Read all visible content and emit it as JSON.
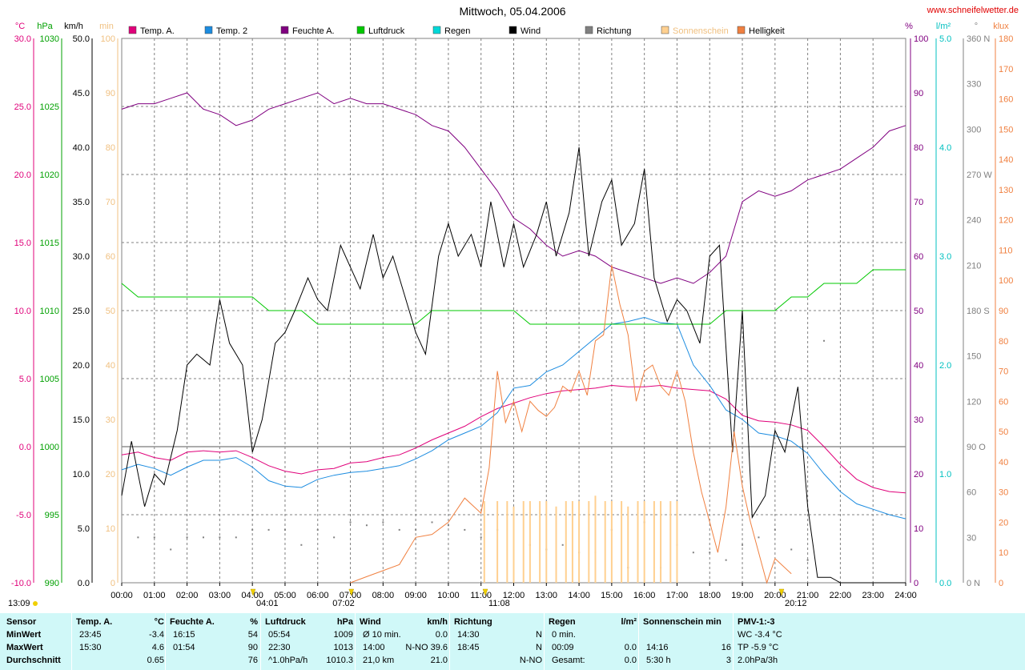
{
  "title": "Mittwoch, 05.04.2006",
  "website": "www.schneifelwetter.de",
  "axis_units": {
    "temp": "°C",
    "pressure": "hPa",
    "wind": "km/h",
    "sun": "min",
    "humidity": "%",
    "rain": "l/m²",
    "direction": "°",
    "brightness": "klux"
  },
  "legend": [
    {
      "label": "Temp. A.",
      "color": "#e0007a"
    },
    {
      "label": "Temp. 2",
      "color": "#1c8ce0"
    },
    {
      "label": "Feuchte A.",
      "color": "#800080"
    },
    {
      "label": "Luftdruck",
      "color": "#00c800"
    },
    {
      "label": "Regen",
      "color": "#00d8d8"
    },
    {
      "label": "Wind",
      "color": "#000000"
    },
    {
      "label": "Richtung",
      "color": "#808080"
    },
    {
      "label": "Sonnenschein",
      "color": "#ffd090"
    },
    {
      "label": "Helligkeit",
      "color": "#f08040"
    }
  ],
  "time_markers": [
    {
      "text": "13:09",
      "pos": "bottom-left"
    },
    {
      "text": "04:01",
      "hour": 4.02
    },
    {
      "text": "07:02",
      "hour": 7.03
    },
    {
      "text": "11:08",
      "hour": 11.13
    },
    {
      "text": "20:12",
      "hour": 20.2
    }
  ],
  "chart_data": {
    "type": "line",
    "title": "Mittwoch, 05.04.2006",
    "x_ticks": [
      "00:00",
      "01:00",
      "02:00",
      "03:00",
      "04:00",
      "05:00",
      "06:00",
      "07:00",
      "08:00",
      "09:00",
      "10:00",
      "11:00",
      "12:00",
      "13:00",
      "14:00",
      "15:00",
      "16:00",
      "17:00",
      "18:00",
      "19:00",
      "20:00",
      "21:00",
      "22:00",
      "23:00",
      "24:00"
    ],
    "xlim": [
      0,
      24
    ],
    "grid": true,
    "axes": {
      "temp": {
        "label": "°C",
        "ylim": [
          -10,
          30
        ],
        "ticks": [
          "30.0",
          "25.0",
          "20.0",
          "15.0",
          "10.0",
          "5.0",
          "0.0",
          "-5.0",
          "-10.0"
        ]
      },
      "pressure": {
        "label": "hPa",
        "ylim": [
          990,
          1030
        ],
        "ticks": [
          "1030",
          "1025",
          "1020",
          "1015",
          "1010",
          "1005",
          "1000",
          "995",
          "990"
        ]
      },
      "wind": {
        "label": "km/h",
        "ylim": [
          0,
          50
        ],
        "ticks": [
          "50.0",
          "45.0",
          "40.0",
          "35.0",
          "30.0",
          "25.0",
          "20.0",
          "15.0",
          "10.0",
          "5.0",
          "0.0"
        ]
      },
      "sun": {
        "label": "min",
        "ylim": [
          0,
          100
        ],
        "ticks": [
          "100",
          "90",
          "80",
          "70",
          "60",
          "50",
          "40",
          "30",
          "20",
          "10",
          "0"
        ]
      },
      "humidity": {
        "label": "%",
        "ylim": [
          0,
          100
        ],
        "ticks": [
          "100",
          "90",
          "80",
          "70",
          "60",
          "50",
          "40",
          "30",
          "20",
          "10",
          "0"
        ]
      },
      "rain": {
        "label": "l/m²",
        "ylim": [
          0,
          5
        ],
        "ticks": [
          "5.0",
          "4.0",
          "3.0",
          "2.0",
          "1.0",
          "0.0"
        ]
      },
      "direction": {
        "label": "°",
        "ylim": [
          0,
          360
        ],
        "ticks": [
          "360 N",
          "330",
          "300",
          "270 W",
          "240",
          "210",
          "180 S",
          "150",
          "120",
          "90 O",
          "60",
          "30",
          "0 N"
        ]
      },
      "brightness": {
        "label": "klux",
        "ylim": [
          0,
          180
        ],
        "ticks": [
          "180",
          "170",
          "160",
          "150",
          "140",
          "130",
          "120",
          "110",
          "100",
          "90",
          "80",
          "70",
          "60",
          "50",
          "40",
          "30",
          "20",
          "10",
          "0"
        ]
      }
    },
    "series": [
      {
        "name": "Temp. A.",
        "axis": "temp",
        "color": "#e0007a",
        "x": [
          0,
          0.5,
          1,
          1.5,
          2,
          2.5,
          3,
          3.5,
          4,
          4.5,
          5,
          5.5,
          6,
          6.5,
          7,
          7.5,
          8,
          8.5,
          9,
          9.5,
          10,
          10.5,
          11,
          11.5,
          12,
          12.5,
          13,
          13.5,
          14,
          14.5,
          15,
          15.5,
          16,
          16.5,
          17,
          17.5,
          18,
          18.5,
          19,
          19.5,
          20,
          20.5,
          21,
          21.5,
          22,
          22.5,
          23,
          23.5,
          24
        ],
        "values": [
          -0.6,
          -0.4,
          -0.8,
          -1.0,
          -0.4,
          -0.3,
          -0.4,
          -0.3,
          -0.8,
          -1.4,
          -1.8,
          -2.0,
          -1.7,
          -1.6,
          -1.2,
          -1.1,
          -0.8,
          -0.6,
          -0.1,
          0.5,
          1.0,
          1.5,
          2.2,
          2.8,
          3.2,
          3.6,
          3.9,
          4.1,
          4.2,
          4.3,
          4.5,
          4.4,
          4.4,
          4.5,
          4.3,
          4.2,
          4.1,
          3.5,
          2.3,
          1.9,
          1.8,
          1.6,
          1.2,
          0.0,
          -1.3,
          -2.4,
          -3.0,
          -3.3,
          -3.4
        ]
      },
      {
        "name": "Temp. 2",
        "axis": "temp",
        "color": "#1c8ce0",
        "x": [
          0,
          0.5,
          1,
          1.5,
          2,
          2.5,
          3,
          3.5,
          4,
          4.5,
          5,
          5.5,
          6,
          6.5,
          7,
          7.5,
          8,
          8.5,
          9,
          9.5,
          10,
          10.5,
          11,
          11.5,
          12,
          12.5,
          13,
          13.5,
          14,
          14.5,
          15,
          15.5,
          16,
          16.5,
          17,
          17.5,
          18,
          18.5,
          19,
          19.5,
          20,
          20.5,
          21,
          21.5,
          22,
          22.5,
          23,
          23.5,
          24
        ],
        "values": [
          -1.7,
          -1.3,
          -1.6,
          -2.1,
          -1.5,
          -1.0,
          -1.0,
          -0.8,
          -1.5,
          -2.5,
          -2.9,
          -3.0,
          -2.4,
          -2.1,
          -1.9,
          -1.8,
          -1.6,
          -1.4,
          -0.9,
          -0.3,
          0.5,
          1.0,
          1.5,
          2.5,
          4.3,
          4.5,
          5.5,
          6.0,
          7.0,
          8.0,
          9.0,
          9.2,
          9.5,
          9.1,
          9.0,
          6.0,
          4.5,
          2.7,
          2.0,
          1.0,
          0.8,
          0.4,
          -0.5,
          -2.0,
          -3.3,
          -4.2,
          -4.6,
          -5.0,
          -5.3
        ]
      },
      {
        "name": "Feuchte A.",
        "axis": "humidity",
        "color": "#800080",
        "x": [
          0,
          0.5,
          1,
          1.5,
          2,
          2.5,
          3,
          3.5,
          4,
          4.5,
          5,
          5.5,
          6,
          6.5,
          7,
          7.5,
          8,
          8.5,
          9,
          9.5,
          10,
          10.5,
          11,
          11.5,
          12,
          12.5,
          13,
          13.5,
          14,
          14.5,
          15,
          15.5,
          16,
          16.5,
          17,
          17.5,
          18,
          18.5,
          19,
          19.5,
          20,
          20.5,
          21,
          21.5,
          22,
          22.5,
          23,
          23.5,
          24
        ],
        "values": [
          87,
          88,
          88,
          89,
          90,
          87,
          86,
          84,
          85,
          87,
          88,
          89,
          90,
          88,
          89,
          88,
          88,
          87,
          86,
          84,
          83,
          80,
          76,
          72,
          67,
          65,
          62,
          60,
          61,
          60,
          58,
          57,
          56,
          55,
          56,
          55,
          57,
          60,
          70,
          72,
          71,
          72,
          74,
          75,
          76,
          78,
          80,
          83,
          84
        ]
      },
      {
        "name": "Luftdruck",
        "axis": "pressure",
        "color": "#00c800",
        "x": [
          0,
          0.5,
          1,
          1.5,
          2,
          2.5,
          3,
          3.5,
          4,
          4.5,
          5,
          5.5,
          6,
          6.5,
          7,
          7.5,
          8,
          8.5,
          9,
          9.5,
          10,
          10.5,
          11,
          11.5,
          12,
          12.5,
          13,
          13.5,
          14,
          14.5,
          15,
          15.5,
          16,
          16.5,
          17,
          17.5,
          18,
          18.5,
          19,
          19.5,
          20,
          20.5,
          21,
          21.5,
          22,
          22.5,
          23,
          23.5,
          24
        ],
        "values": [
          1012,
          1011,
          1011,
          1011,
          1011,
          1011,
          1011,
          1011,
          1011,
          1010,
          1010,
          1010,
          1009,
          1009,
          1009,
          1009,
          1009,
          1009,
          1009,
          1010,
          1010,
          1010,
          1010,
          1010,
          1010,
          1009,
          1009,
          1009,
          1009,
          1009,
          1009,
          1009,
          1009,
          1009,
          1009,
          1009,
          1009,
          1010,
          1010,
          1010,
          1010,
          1011,
          1011,
          1012,
          1012,
          1012,
          1013,
          1013,
          1013
        ]
      },
      {
        "name": "Wind",
        "axis": "wind",
        "color": "#000000",
        "x": [
          0,
          0.3,
          0.7,
          1,
          1.3,
          1.7,
          2,
          2.3,
          2.7,
          3,
          3.3,
          3.7,
          4,
          4.3,
          4.7,
          5,
          5.3,
          5.7,
          6,
          6.3,
          6.7,
          7,
          7.3,
          7.7,
          8,
          8.3,
          8.7,
          9,
          9.3,
          9.7,
          10,
          10.3,
          10.7,
          11,
          11.3,
          11.7,
          12,
          12.3,
          12.7,
          13,
          13.3,
          13.7,
          14,
          14.3,
          14.7,
          15,
          15.3,
          15.7,
          16,
          16.3,
          16.7,
          17,
          17.3,
          17.7,
          18,
          18.3,
          18.7,
          19,
          19.3,
          19.7,
          20,
          20.3,
          20.7,
          21,
          21.3,
          21.7,
          22,
          22.3,
          22.7,
          23,
          23.3,
          23.7,
          24
        ],
        "values": [
          8,
          13,
          7,
          10,
          9,
          14,
          20,
          21,
          20,
          26,
          22,
          20,
          12,
          15,
          22,
          23,
          25,
          28,
          26,
          25,
          31,
          29,
          27,
          32,
          28,
          30,
          26,
          23,
          21,
          30,
          33,
          30,
          32,
          29,
          35,
          29,
          33,
          29,
          32,
          35,
          30,
          34,
          40,
          30,
          35,
          37,
          31,
          33,
          38,
          28,
          24,
          26,
          25,
          22,
          30,
          31,
          12,
          25,
          6,
          8,
          14,
          12,
          18,
          7,
          0.5,
          0.5,
          0,
          0,
          0,
          0,
          0,
          0,
          0
        ]
      },
      {
        "name": "Richtung",
        "axis": "direction",
        "color": "#808080",
        "x": [
          0.5,
          1,
          1.5,
          2,
          2.5,
          3,
          3.5,
          4,
          4.5,
          5,
          5.5,
          6,
          6.5,
          7,
          7.5,
          8,
          8.5,
          9,
          9.5,
          10,
          10.5,
          11,
          11.5,
          12,
          12.5,
          13,
          13.5,
          14,
          14.5,
          15,
          15.5,
          16,
          16.5,
          17,
          17.5,
          18,
          18.5,
          19,
          19.5,
          20,
          20.5,
          21,
          21.5
        ],
        "values": [
          30,
          30,
          22,
          30,
          30,
          30,
          30,
          35,
          35,
          35,
          25,
          35,
          30,
          40,
          38,
          40,
          35,
          35,
          40,
          38,
          35,
          30,
          35,
          20,
          25,
          22,
          25,
          20,
          20,
          35,
          10,
          40,
          10,
          25,
          20,
          20,
          15,
          25,
          30,
          35,
          22,
          15,
          160
        ]
      },
      {
        "name": "Helligkeit",
        "axis": "brightness",
        "color": "#f08040",
        "x": [
          7,
          7.5,
          8,
          8.5,
          9,
          9.5,
          10,
          10.5,
          11,
          11.25,
          11.5,
          11.75,
          12,
          12.25,
          12.5,
          12.75,
          13,
          13.25,
          13.5,
          13.75,
          14,
          14.25,
          14.5,
          14.75,
          15,
          15.25,
          15.5,
          15.75,
          16,
          16.25,
          16.5,
          16.75,
          17,
          17.25,
          17.5,
          17.75,
          18,
          18.25,
          18.5,
          18.75,
          19,
          19.25,
          19.5,
          19.75,
          20,
          20.5
        ],
        "values": [
          0,
          2,
          4,
          6,
          15,
          16,
          20,
          28,
          23,
          38,
          70,
          53,
          60,
          50,
          60,
          57,
          55,
          58,
          65,
          63,
          70,
          62,
          80,
          82,
          105,
          92,
          82,
          60,
          70,
          72,
          65,
          62,
          70,
          60,
          43,
          30,
          20,
          10,
          25,
          50,
          32,
          20,
          10,
          0,
          8,
          3
        ]
      },
      {
        "name": "Sonnenschein",
        "axis": "sun",
        "color": "#ffd090",
        "type": "bar",
        "x": [
          11.1,
          11.5,
          11.8,
          12.0,
          12.3,
          12.5,
          12.8,
          13.0,
          13.3,
          13.6,
          13.8,
          14.0,
          14.3,
          14.5,
          14.8,
          15.0,
          15.3,
          15.5,
          15.8,
          16.0,
          16.3,
          16.5,
          16.8,
          17.0
        ],
        "values": [
          15,
          15,
          15,
          14,
          15,
          15,
          15,
          15,
          14,
          15,
          15,
          15,
          15,
          16,
          15,
          15,
          15,
          14,
          15,
          15,
          15,
          15,
          15,
          15
        ]
      }
    ]
  },
  "stats": {
    "headers": [
      {
        "label": "Sensor",
        "unit": ""
      },
      {
        "label": "Temp. A.",
        "unit": "°C"
      },
      {
        "label": "Feuchte A.",
        "unit": "%"
      },
      {
        "label": "Luftdruck",
        "unit": "hPa"
      },
      {
        "label": "Wind",
        "unit": "km/h"
      },
      {
        "label": "Richtung",
        "unit": ""
      },
      {
        "label": "Regen",
        "unit": "l/m²"
      },
      {
        "label": "Sonnenschein min",
        "unit": ""
      },
      {
        "label": "PMV-1:-3",
        "unit": ""
      }
    ],
    "row_labels": [
      "MinWert",
      "MaxWert",
      "Durchschnitt"
    ],
    "temp": [
      [
        "23:45",
        "-3.4"
      ],
      [
        "15:30",
        "4.6"
      ],
      [
        "",
        "0.65"
      ]
    ],
    "humidity": [
      [
        "16:15",
        "54"
      ],
      [
        "01:54",
        "90"
      ],
      [
        "",
        "76"
      ]
    ],
    "pressure": [
      [
        "05:54",
        "1009"
      ],
      [
        "22:30",
        "1013"
      ],
      [
        "^1.0hPa/h",
        "1010.3"
      ]
    ],
    "wind": [
      [
        "Ø 10 min.",
        "0.0"
      ],
      [
        "14:00",
        "N-NO 39.6"
      ],
      [
        "21,0 km",
        "21.0"
      ]
    ],
    "direction": [
      [
        "14:30",
        "N"
      ],
      [
        "18:45",
        "N"
      ],
      [
        "",
        "N-NO"
      ]
    ],
    "rain": [
      [
        "0 min.",
        ""
      ],
      [
        "00:09",
        "0.0"
      ],
      [
        "Gesamt:",
        "0.0"
      ]
    ],
    "sun": [
      [
        "",
        ""
      ],
      [
        "14:16",
        "16"
      ],
      [
        "5:30 h",
        "3"
      ]
    ],
    "pmv": [
      "WC -3.4 °C",
      "TP -5.9 °C",
      "2.0hPa/3h"
    ]
  }
}
